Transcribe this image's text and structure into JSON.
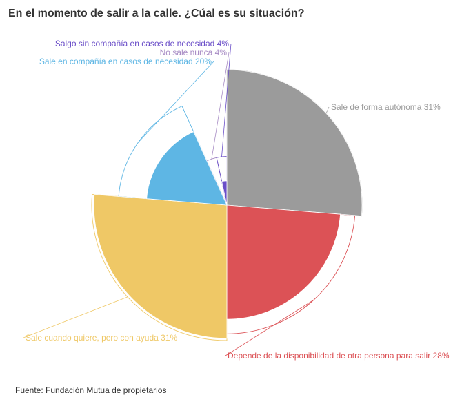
{
  "title": "En el momento de salir a la calle. ¿Cúal es su situación?",
  "source": "Fuente: Fundación Mutua de propietarios",
  "chart_data": {
    "type": "pie",
    "variant": "polar-area-with-outline",
    "start_direction": "north",
    "direction": "clockwise",
    "outline_value_max": 31,
    "slices": [
      {
        "label": "Sale de forma autónoma 31%",
        "value": 31,
        "fill_value": 31,
        "color": "#9b9b9b"
      },
      {
        "label": "Depende de la disponibilidad de otra persona para salir 28%",
        "value": 28,
        "fill_value": 22,
        "color": "#dc5256"
      },
      {
        "label": "Sale cuando quiere, pero con ayuda 31%",
        "value": 31,
        "fill_value": 30,
        "color": "#efc866"
      },
      {
        "label": "Sale en compañía en casos de necesidad 20%",
        "value": 20,
        "fill_value": 11,
        "color": "#5eb6e4"
      },
      {
        "label": "No sale nunca 4%",
        "value": 4,
        "fill_value": 0,
        "color": "#a78bc4"
      },
      {
        "label": "Salgo sin compañía en casos de necesidad 4%",
        "value": 4,
        "fill_value": 1,
        "color": "#6a4ec8"
      }
    ]
  }
}
